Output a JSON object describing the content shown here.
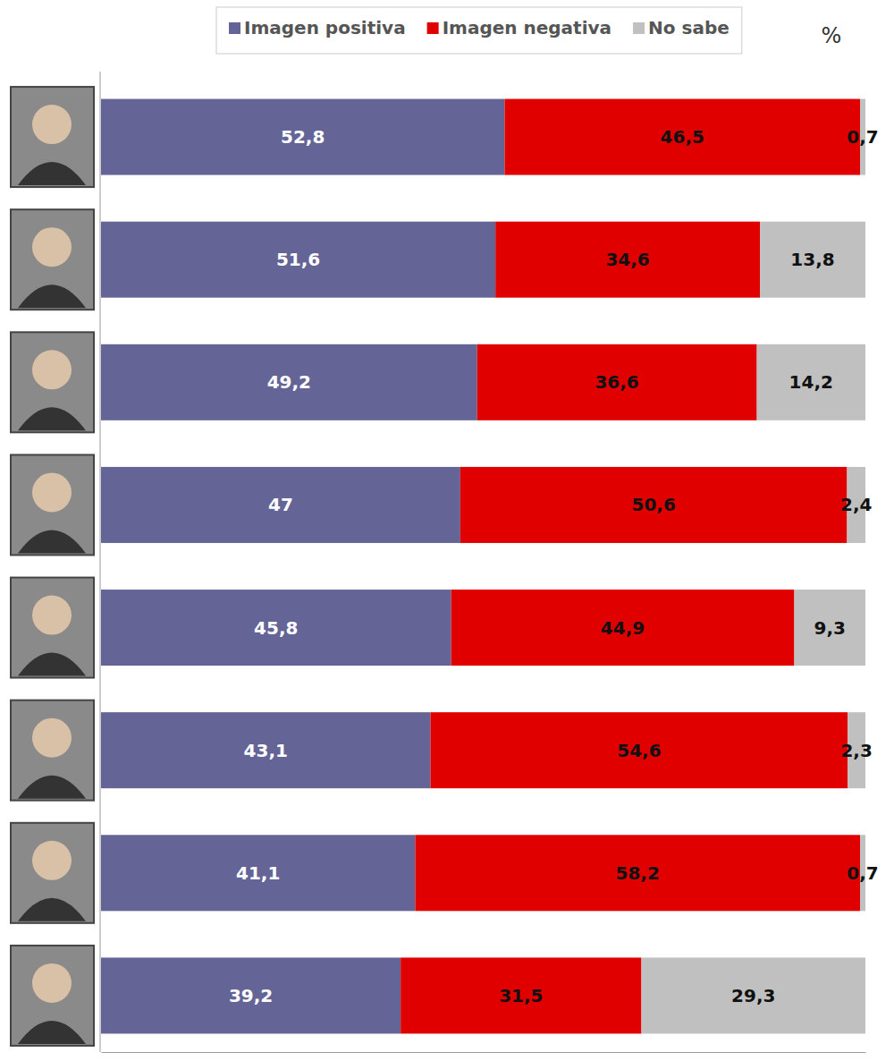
{
  "chart_data": {
    "type": "bar",
    "orientation": "horizontal",
    "stacked": true,
    "data_labels": true,
    "tick_labels": false,
    "legend": "top",
    "xlabel": "%",
    "categories": [
      null,
      null,
      null,
      null,
      null,
      null,
      null,
      null
    ],
    "xlim": [
      0,
      100
    ],
    "series": [
      {
        "name": "Imagen positiva",
        "color": "#646497",
        "values": [
          52.8,
          51.6,
          49.2,
          47,
          45.8,
          43.1,
          41.1,
          39.2
        ],
        "value_labels": [
          "52,8",
          "51,6",
          "49,2",
          "47",
          "45,8",
          "43,1",
          "41,1",
          "39,2"
        ]
      },
      {
        "name": "Imagen negativa",
        "color": "#e00000",
        "values": [
          46.5,
          34.6,
          36.6,
          50.6,
          44.9,
          54.6,
          58.2,
          31.5
        ],
        "value_labels": [
          "46,5",
          "34,6",
          "36,6",
          "50,6",
          "44,9",
          "54,6",
          "58,2",
          "31,5"
        ]
      },
      {
        "name": "No sabe",
        "color": "#c0c0c0",
        "values": [
          0.7,
          13.8,
          14.2,
          2.4,
          9.3,
          2.3,
          0.7,
          29.3
        ],
        "value_labels": [
          "0,7",
          "13,8",
          "14,2",
          "2,4",
          "9,3",
          "2,3",
          "0,7",
          "29,3"
        ]
      }
    ]
  }
}
